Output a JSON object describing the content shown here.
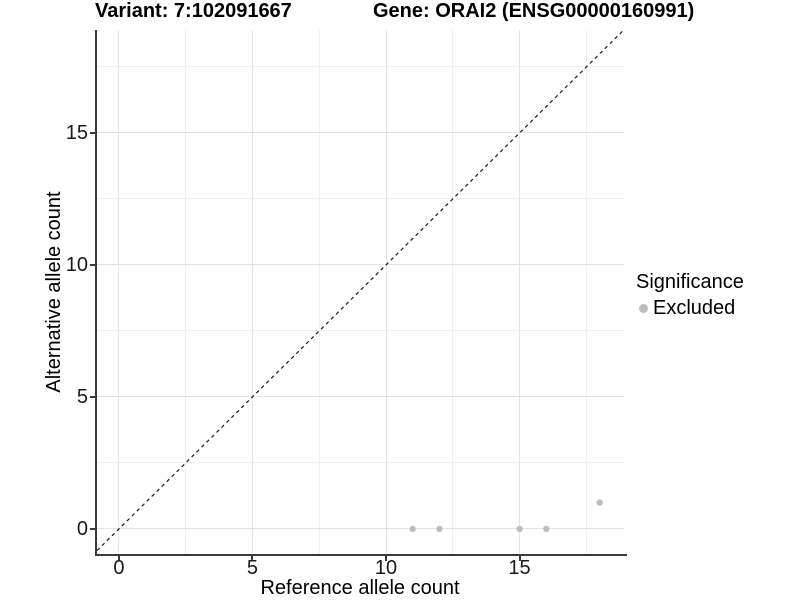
{
  "colors": {
    "point": "#bdbdbd",
    "grid_major": "#e4e4e4",
    "grid_minor": "#f0f0f0",
    "axis_line": "#3a3a3a",
    "reference_line": "#1a1a1a",
    "background": "#ffffff"
  },
  "legend": {
    "title": "Significance",
    "items": [
      {
        "label": "Excluded",
        "color": "#bdbdbd"
      }
    ]
  },
  "chart_data": {
    "type": "scatter",
    "title_left": "Variant: 7:102091667",
    "title_right": "Gene: ORAI2 (ENSG00000160991)",
    "xlabel": "Reference allele count",
    "ylabel": "Alternative allele count",
    "xlim": [
      -0.82,
      18.91
    ],
    "ylim": [
      -0.95,
      18.9
    ],
    "x_ticks": [
      0,
      5,
      10,
      15
    ],
    "y_ticks": [
      0,
      5,
      10,
      15
    ],
    "x_minor_ticks": [
      2.5,
      7.5,
      12.5,
      17.5
    ],
    "y_minor_ticks": [
      2.5,
      7.5,
      12.5,
      17.5
    ],
    "grid": true,
    "legend_position": "right",
    "series": [
      {
        "name": "Excluded",
        "color": "#bdbdbd",
        "points": [
          {
            "x": 11,
            "y": 0
          },
          {
            "x": 12,
            "y": 0
          },
          {
            "x": 15,
            "y": 0
          },
          {
            "x": 16,
            "y": 0
          },
          {
            "x": 18,
            "y": 1
          }
        ]
      }
    ],
    "reference_line": {
      "type": "identity",
      "style": "dashed",
      "color": "#1a1a1a"
    }
  }
}
